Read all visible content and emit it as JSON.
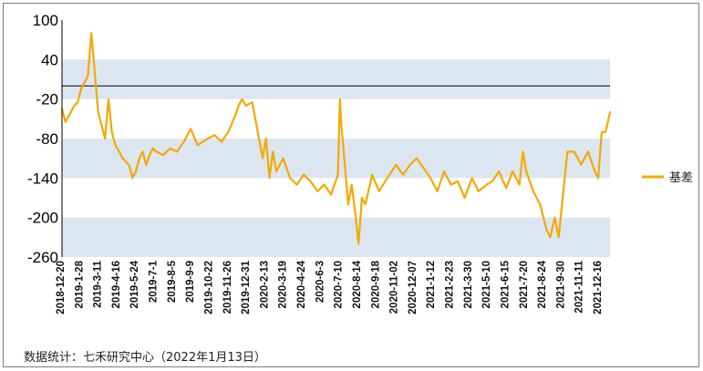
{
  "chart_data": {
    "type": "line",
    "title": "",
    "xlabel": "",
    "ylabel": "",
    "ylim": [
      -260,
      100
    ],
    "yticks": [
      100,
      40,
      -20,
      -80,
      -140,
      -200,
      -260
    ],
    "shaded_bands": [
      [
        -20,
        40
      ],
      [
        -140,
        -80
      ],
      [
        -260,
        -200
      ]
    ],
    "reference_line": 0,
    "grid": false,
    "legend_position": "right",
    "series_color": "#F5A800",
    "x_tick_labels": [
      "2018-12-20",
      "2019-1-28",
      "2019-3-11",
      "2019-4-16",
      "2019-5-24",
      "2019-7-1",
      "2019-8-5",
      "2019-9-9",
      "2019-10-22",
      "2019-11-26",
      "2019-12-31",
      "2020-2-13",
      "2020-3-19",
      "2020-4-24",
      "2020-6-3",
      "2020-7-10",
      "2020-8-14",
      "2020-9-18",
      "2020-11-02",
      "2020-12-07",
      "2021-1-12",
      "2021-2-23",
      "2021-3-30",
      "2021-5-10",
      "2021-6-15",
      "2021-7-20",
      "2021-8-24",
      "2021-9-30",
      "2021-11-11",
      "2021-12-16"
    ],
    "series": [
      {
        "name": "基差",
        "x": [
          "2018-12-20",
          "2018-12-27",
          "2019-1-7",
          "2019-1-14",
          "2019-1-21",
          "2019-1-28",
          "2019-2-11",
          "2019-2-18",
          "2019-2-25",
          "2019-3-4",
          "2019-3-11",
          "2019-3-18",
          "2019-3-25",
          "2019-4-1",
          "2019-4-8",
          "2019-4-16",
          "2019-4-23",
          "2019-5-6",
          "2019-5-13",
          "2019-5-20",
          "2019-5-27",
          "2019-6-3",
          "2019-6-10",
          "2019-6-17",
          "2019-6-24",
          "2019-7-1",
          "2019-7-15",
          "2019-7-29",
          "2019-8-12",
          "2019-8-26",
          "2019-9-9",
          "2019-9-23",
          "2019-10-14",
          "2019-10-28",
          "2019-11-11",
          "2019-11-25",
          "2019-12-9",
          "2019-12-16",
          "2019-12-23",
          "2019-12-31",
          "2020-1-13",
          "2020-2-3",
          "2020-2-10",
          "2020-2-17",
          "2020-2-24",
          "2020-3-2",
          "2020-3-16",
          "2020-3-30",
          "2020-4-13",
          "2020-4-27",
          "2020-5-11",
          "2020-5-25",
          "2020-6-8",
          "2020-6-22",
          "2020-7-6",
          "2020-7-10",
          "2020-7-13",
          "2020-7-20",
          "2020-7-27",
          "2020-8-3",
          "2020-8-10",
          "2020-8-17",
          "2020-8-24",
          "2020-8-31",
          "2020-9-14",
          "2020-9-28",
          "2020-10-19",
          "2020-11-2",
          "2020-11-16",
          "2020-11-30",
          "2020-12-14",
          "2020-12-28",
          "2021-1-11",
          "2021-1-25",
          "2021-2-8",
          "2021-2-22",
          "2021-3-8",
          "2021-3-22",
          "2021-4-6",
          "2021-4-19",
          "2021-5-6",
          "2021-5-17",
          "2021-5-31",
          "2021-6-15",
          "2021-6-28",
          "2021-7-12",
          "2021-7-19",
          "2021-7-26",
          "2021-8-9",
          "2021-8-23",
          "2021-9-6",
          "2021-9-13",
          "2021-9-22",
          "2021-9-30",
          "2021-10-18",
          "2021-11-1",
          "2021-11-15",
          "2021-11-29",
          "2021-12-13",
          "2021-12-20",
          "2021-12-27",
          "2022-1-4",
          "2022-1-13"
        ],
        "y": [
          -35,
          -55,
          -40,
          -30,
          -25,
          -5,
          15,
          80,
          20,
          -40,
          -60,
          -80,
          -20,
          -70,
          -90,
          -100,
          -110,
          -120,
          -140,
          -130,
          -110,
          -100,
          -120,
          -105,
          -95,
          -100,
          -105,
          -95,
          -100,
          -85,
          -65,
          -90,
          -80,
          -75,
          -85,
          -70,
          -45,
          -30,
          -20,
          -30,
          -25,
          -110,
          -80,
          -140,
          -100,
          -130,
          -110,
          -140,
          -150,
          -135,
          -145,
          -160,
          -150,
          -165,
          -135,
          -20,
          -60,
          -120,
          -180,
          -150,
          -190,
          -240,
          -170,
          -180,
          -135,
          -160,
          -135,
          -120,
          -135,
          -120,
          -110,
          -125,
          -140,
          -160,
          -130,
          -150,
          -145,
          -170,
          -140,
          -160,
          -150,
          -145,
          -130,
          -155,
          -130,
          -150,
          -100,
          -130,
          -160,
          -180,
          -220,
          -230,
          -200,
          -230,
          -100,
          -100,
          -120,
          -100,
          -130,
          -140,
          -70,
          -70,
          -40
        ]
      }
    ]
  },
  "footer": {
    "source": "数据统计：七禾研究中心（2022年1月13日）"
  }
}
